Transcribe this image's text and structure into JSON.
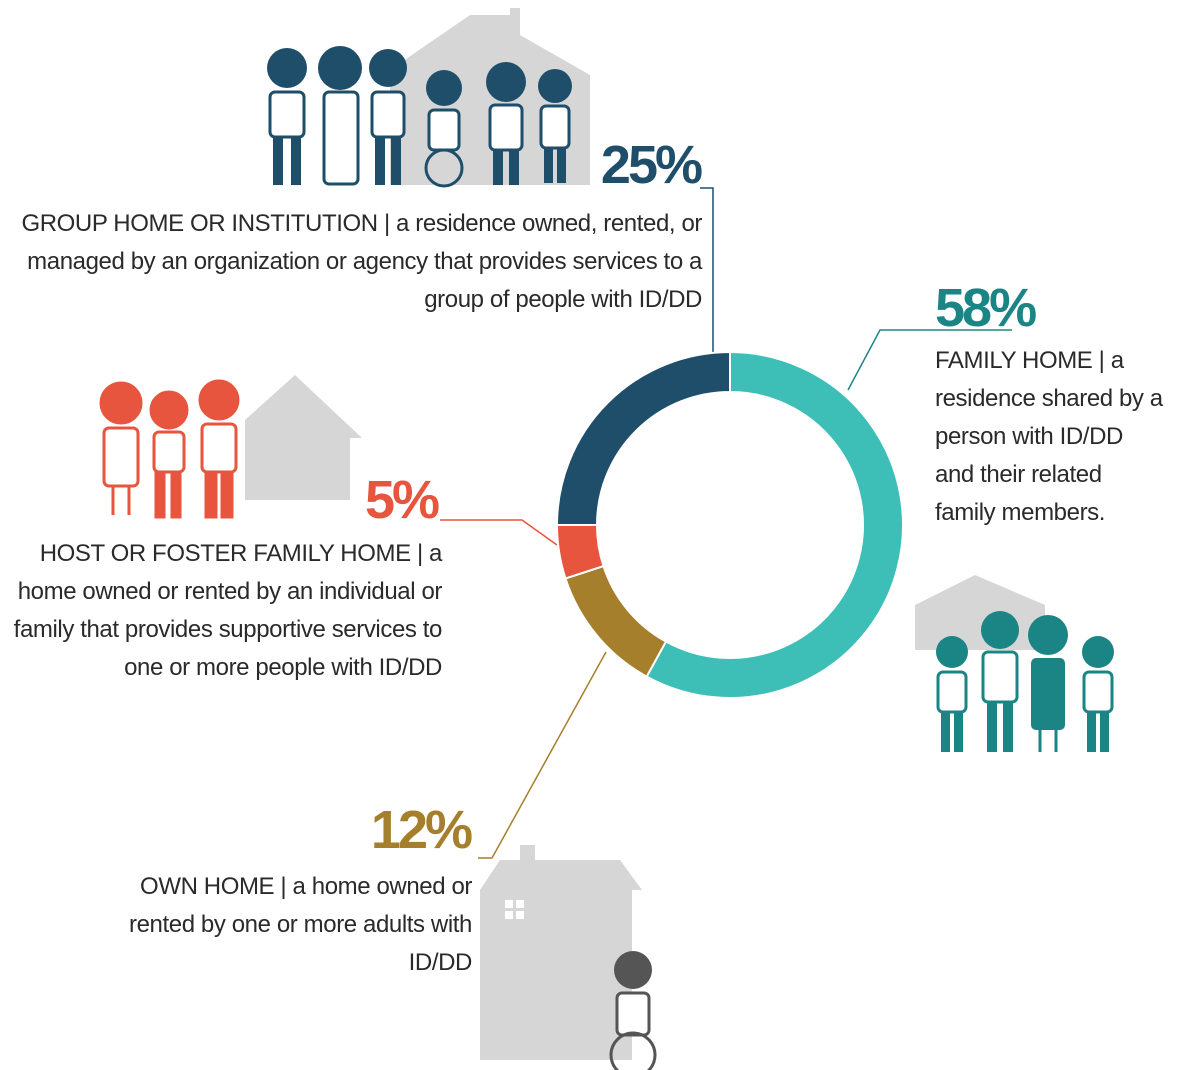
{
  "chart_data": {
    "type": "donut",
    "categories": [
      "FAMILY HOME | a residence shared by a person with ID/DD and their related family members.",
      "OWN HOME | a home owned or rented by one or more adults with ID/DD",
      "HOST OR FOSTER FAMILY HOME | a home owned or rented by an individual or family that provides supportive services to one or more people with ID/DD",
      "GROUP HOME OR INSTITUTION | a residence owned, rented, or managed by an organization or agency that provides services to a group of people with ID/DD"
    ],
    "values": [
      58,
      12,
      5,
      25
    ],
    "value_labels": [
      "58%",
      "12%",
      "5%",
      "25%"
    ],
    "colors": [
      "#3dbfb8",
      "#a67f2c",
      "#e8553e",
      "#1f4e6b"
    ],
    "label_colors": [
      "#1b8585",
      "#a67f2c",
      "#e8553e",
      "#1f4e6b"
    ]
  }
}
